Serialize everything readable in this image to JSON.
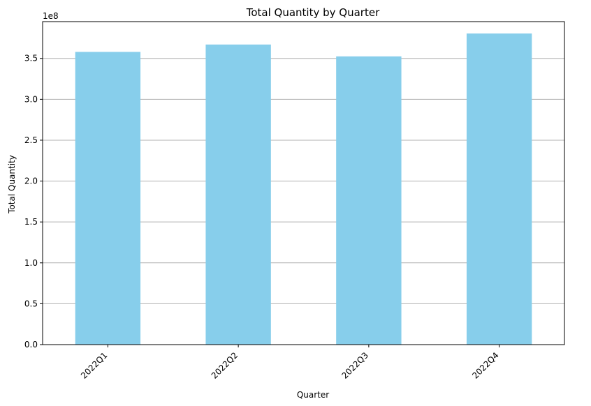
{
  "chart_data": {
    "type": "bar",
    "title": "Total Quantity by Quarter",
    "xlabel": "Quarter",
    "ylabel": "Total Quantity",
    "y_scale_label": "1e8",
    "categories": [
      "2022Q1",
      "2022Q2",
      "2022Q3",
      "2022Q4"
    ],
    "values": [
      358000000,
      367000000,
      352500000,
      380500000
    ],
    "ylim": [
      0,
      395000000
    ],
    "y_ticks": [
      0,
      50000000,
      100000000,
      150000000,
      200000000,
      250000000,
      300000000,
      350000000
    ],
    "y_tick_labels": [
      "0.0",
      "0.5",
      "1.0",
      "1.5",
      "2.0",
      "2.5",
      "3.0",
      "3.5"
    ],
    "grid": "horizontal",
    "legend": "none",
    "bar_color": "#87CEEB",
    "grid_color": "#b0b0b0"
  }
}
